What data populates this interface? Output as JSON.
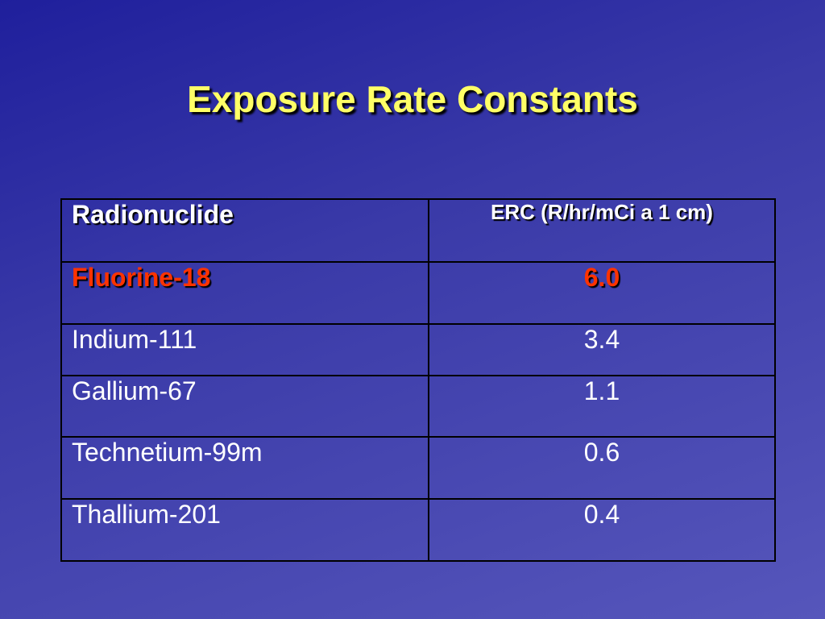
{
  "title": "Exposure Rate Constants",
  "table": {
    "header": [
      "Radionuclide",
      "ERC (R/hr/mCi a 1 cm)"
    ],
    "rows": [
      [
        "Fluorine-18",
        "6.0"
      ],
      [
        "Indium-111",
        "3.4"
      ],
      [
        "Gallium-67",
        "1.1"
      ],
      [
        "Technetium-99m",
        "0.6"
      ],
      [
        "Thallium-201",
        "0.4"
      ]
    ]
  }
}
